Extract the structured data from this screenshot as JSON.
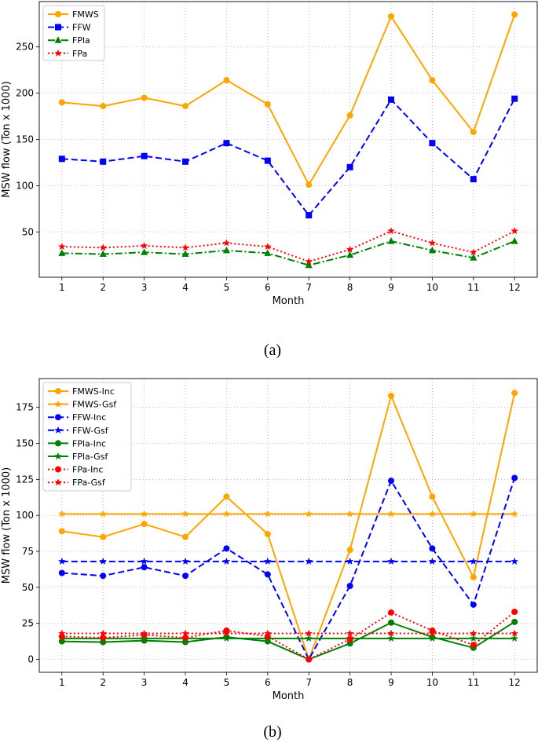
{
  "chart_data": [
    {
      "type": "line",
      "panel_label": "(a)",
      "xlabel": "Month",
      "ylabel": "MSW flow (Ton x 1000)",
      "x": [
        1,
        2,
        3,
        4,
        5,
        6,
        7,
        8,
        9,
        10,
        11,
        12
      ],
      "xticks": [
        "1",
        "2",
        "3",
        "4",
        "5",
        "6",
        "7",
        "8",
        "9",
        "10",
        "11",
        "12"
      ],
      "xlim": [
        0.45,
        12.55
      ],
      "ylim": [
        1,
        299
      ],
      "yticks": [
        50,
        100,
        150,
        200,
        250
      ],
      "ytick_labels": [
        "50",
        "100",
        "150",
        "200",
        "250"
      ],
      "grid": true,
      "legend_position": "upper-left",
      "series": [
        {
          "name": "FMWS",
          "color": "#ffa500",
          "dash": "solid",
          "marker": "circle",
          "values": [
            190,
            186,
            195,
            186,
            214,
            188,
            101,
            176,
            283,
            214,
            158,
            285
          ]
        },
        {
          "name": "FFW",
          "color": "#0000ff",
          "dash": "dashed",
          "marker": "square",
          "values": [
            129,
            126,
            132,
            126,
            146,
            127,
            68,
            120,
            193,
            146,
            107,
            194
          ]
        },
        {
          "name": "FPla",
          "color": "#008000",
          "dash": "dashdot",
          "marker": "triangle",
          "values": [
            27,
            26,
            28,
            26,
            30,
            27,
            14,
            25,
            40,
            30,
            22,
            40
          ]
        },
        {
          "name": "FPa",
          "color": "#ff0000",
          "dash": "dotted",
          "marker": "star",
          "values": [
            34,
            33,
            35,
            33,
            38,
            34,
            18,
            31,
            51,
            38,
            28,
            51
          ]
        }
      ]
    },
    {
      "type": "line",
      "panel_label": "(b)",
      "xlabel": "Month",
      "ylabel": "MSW flow (Ton x 1000)",
      "x": [
        1,
        2,
        3,
        4,
        5,
        6,
        7,
        8,
        9,
        10,
        11,
        12
      ],
      "xticks": [
        "1",
        "2",
        "3",
        "4",
        "5",
        "6",
        "7",
        "8",
        "9",
        "10",
        "11",
        "12"
      ],
      "xlim": [
        0.45,
        12.55
      ],
      "ylim": [
        -9,
        195
      ],
      "yticks": [
        0,
        25,
        50,
        75,
        100,
        125,
        150,
        175
      ],
      "ytick_labels": [
        "0",
        "25",
        "50",
        "75",
        "100",
        "125",
        "150",
        "175"
      ],
      "grid": true,
      "legend_position": "upper-left",
      "series": [
        {
          "name": "FMWS-Inc",
          "color": "#ffa500",
          "dash": "solid",
          "marker": "circle",
          "values": [
            89,
            85,
            94,
            85,
            113,
            87,
            0,
            76,
            183,
            113,
            57,
            185
          ]
        },
        {
          "name": "FMWS-Gsf",
          "color": "#ffa500",
          "dash": "solid",
          "marker": "star",
          "values": [
            101,
            101,
            101,
            101,
            101,
            101,
            101,
            101,
            101,
            101,
            101,
            101
          ]
        },
        {
          "name": "FFW-Inc",
          "color": "#0000ff",
          "dash": "dashed",
          "marker": "circle",
          "values": [
            60,
            58,
            64,
            58,
            77,
            59,
            0,
            51,
            124,
            77,
            38,
            126
          ]
        },
        {
          "name": "FFW-Gsf",
          "color": "#0000ff",
          "dash": "dashed",
          "marker": "star",
          "values": [
            68,
            68,
            68,
            68,
            68,
            68,
            68,
            68,
            68,
            68,
            68,
            68
          ]
        },
        {
          "name": "FPla-Inc",
          "color": "#008000",
          "dash": "solid",
          "marker": "circle",
          "values": [
            12.5,
            12,
            13,
            12,
            15.5,
            12.5,
            0,
            11,
            25.5,
            15.5,
            8,
            26
          ]
        },
        {
          "name": "FPla-Gsf",
          "color": "#008000",
          "dash": "solid",
          "marker": "star",
          "values": [
            14.5,
            14.5,
            14.5,
            14.5,
            14.5,
            14.5,
            14.5,
            14.5,
            14.5,
            14.5,
            14.5,
            14.5
          ]
        },
        {
          "name": "FPa-Inc",
          "color": "#ff0000",
          "dash": "dotted",
          "marker": "circle",
          "values": [
            16,
            15,
            17,
            15,
            20,
            16,
            0,
            14,
            32.5,
            20,
            10,
            33
          ]
        },
        {
          "name": "FPa-Gsf",
          "color": "#ff0000",
          "dash": "dotted",
          "marker": "star",
          "values": [
            18,
            18,
            18,
            18,
            18,
            18,
            18,
            18,
            18,
            18,
            18,
            18
          ]
        }
      ]
    }
  ]
}
